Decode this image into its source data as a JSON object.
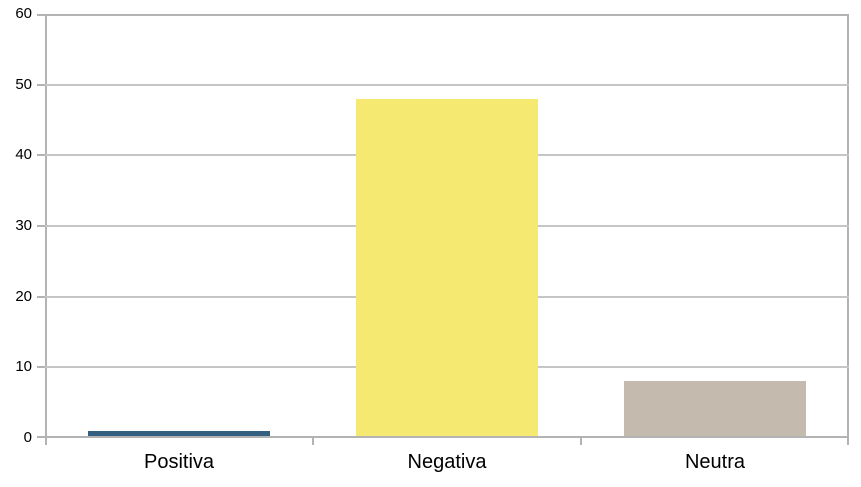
{
  "chart_data": {
    "type": "bar",
    "title": "",
    "xlabel": "",
    "ylabel": "",
    "categories": [
      "Positiva",
      "Negativa",
      "Neutra"
    ],
    "values": [
      1,
      48,
      8
    ],
    "bar_colors": [
      "#336080",
      "#F6E972",
      "#C4BBAE"
    ],
    "ylim": [
      0,
      60
    ],
    "ytick_interval": 10,
    "ytick_labels": [
      "0",
      "10",
      "20",
      "30",
      "40",
      "50",
      "60"
    ],
    "grid": "horizontal-only",
    "legend": "none",
    "gridline_color": "#c6c6c6",
    "axis_color": "#b3b3b3",
    "text_color": "#000000",
    "background_color": "#ffffff",
    "bar_width_fraction": 0.68
  }
}
